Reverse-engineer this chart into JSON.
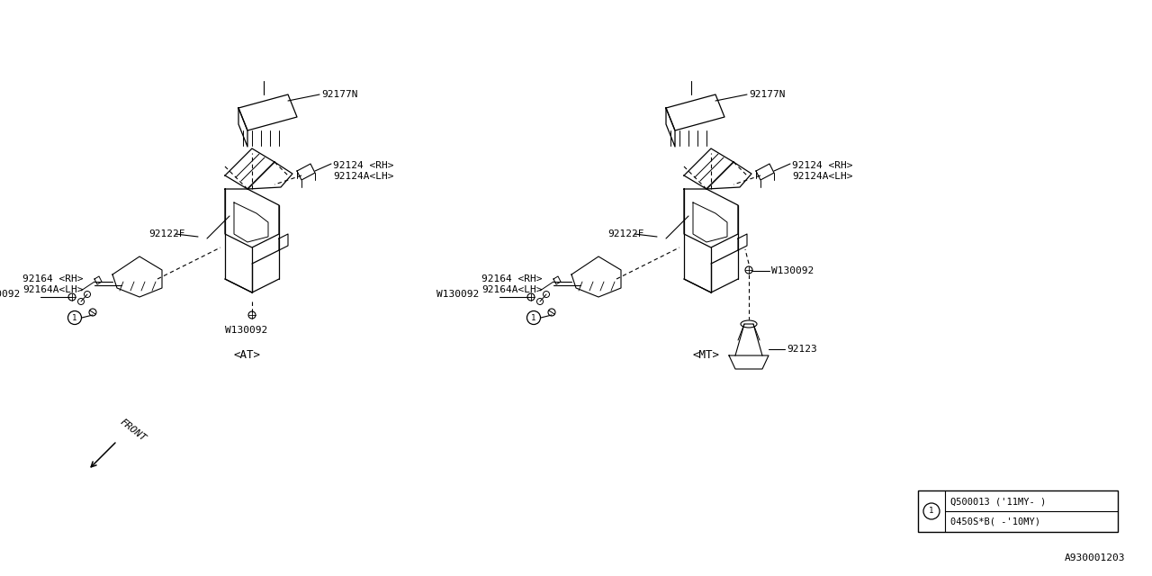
{
  "bg_color": "#ffffff",
  "line_color": "#000000",
  "diagram_id": "A930001203",
  "legend_row1": "0450S*B( -'10MY)",
  "legend_row2": "Q500013 ('11MY- )",
  "at_label": "<AT>",
  "mt_label": "<MT>",
  "front_label": "FRONT",
  "p92177N": "92177N",
  "p92122F": "92122F",
  "p92124_RH": "92124 <RH>",
  "p92124A_LH": "92124A<LH>",
  "p92164_RH": "92164 <RH>",
  "p92164A_LH": "92164A<LH>",
  "pW130092": "W130092",
  "p92123": "92123"
}
